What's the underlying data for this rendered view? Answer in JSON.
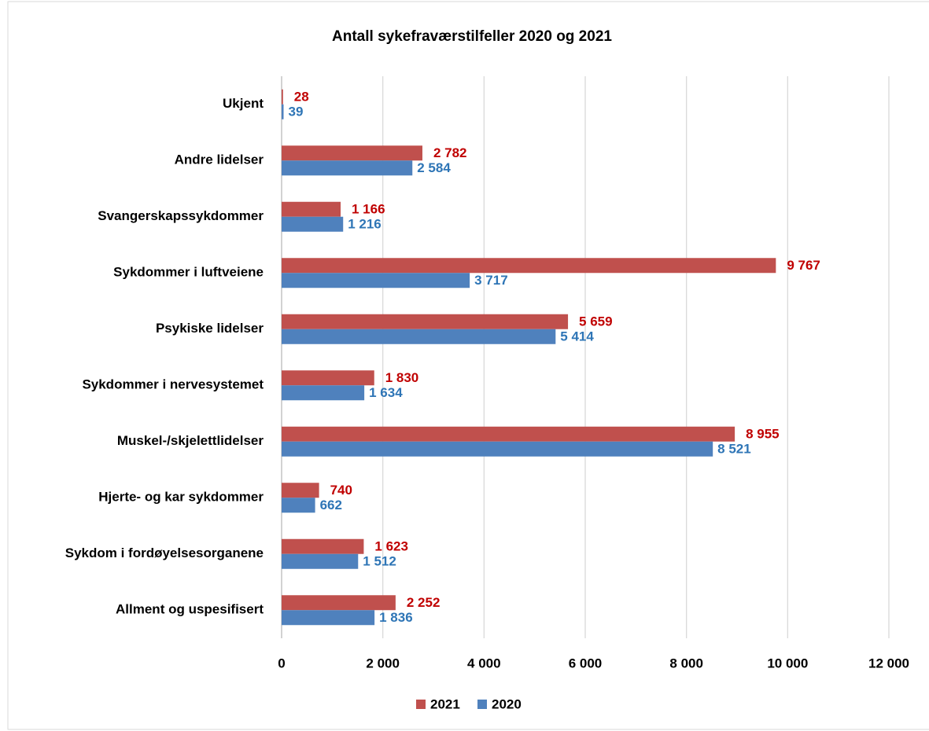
{
  "chart_data": {
    "type": "hbar",
    "title": "Antall sykefraværstilfeller 2020 og 2021",
    "categories": [
      "Ukjent",
      "Andre lidelser",
      "Svangerskapssykdommer",
      "Sykdommer i luftveiene",
      "Psykiske lidelser",
      "Sykdommer i nervesystemet",
      "Muskel-/skjelettlidelser",
      "Hjerte- og kar sykdommer",
      "Sykdom i fordøyelsesorganene",
      "Allment og uspesifisert"
    ],
    "series": [
      {
        "name": "2021",
        "color": "#c0504d",
        "label_color": "#c00000",
        "values": [
          28,
          2782,
          1166,
          9767,
          5659,
          1830,
          8955,
          740,
          1623,
          2252
        ],
        "value_labels": [
          "28",
          "2 782",
          "1 166",
          "9 767",
          "5 659",
          "1 830",
          "8 955",
          "740",
          "1 623",
          "2 252"
        ]
      },
      {
        "name": "2020",
        "color": "#4f81bd",
        "label_color": "#2e75b6",
        "values": [
          39,
          2584,
          1216,
          3717,
          5414,
          1634,
          8521,
          662,
          1512,
          1836
        ],
        "value_labels": [
          "39",
          "2 584",
          "1 216",
          "3 717",
          "5 414",
          "1 634",
          "8 521",
          "662",
          "1 512",
          "1 836"
        ]
      }
    ],
    "xlim": [
      0,
      12000
    ],
    "xticks": [
      0,
      {
        "value": 2000,
        "label": "2 000"
      },
      {
        "value": 4000,
        "label": "4 000"
      },
      {
        "value": 6000,
        "label": "6 000"
      },
      {
        "value": 8000,
        "label": "8 000"
      },
      {
        "value": 10000,
        "label": "10 000"
      },
      {
        "value": 12000,
        "label": "12 000"
      }
    ],
    "grid": true,
    "legend": "bottom"
  }
}
